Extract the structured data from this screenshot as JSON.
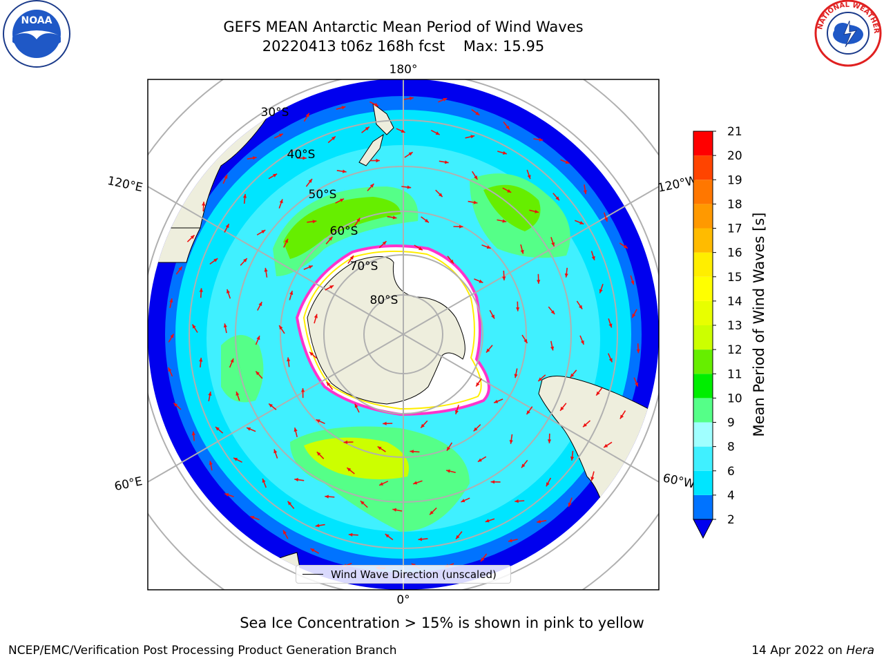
{
  "title": {
    "line1": "GEFS MEAN Antarctic Mean Period of Wind Waves",
    "line2": "20220413 t06z 168h fcst    Max: 15.95"
  },
  "map": {
    "projection": "south-polar-stereographic",
    "longitude_labels": {
      "top": "180°",
      "bottom": "0°",
      "upper_left": "120°E",
      "lower_left": "60°E",
      "upper_right": "120°W",
      "lower_right": "60°W"
    },
    "latitude_labels": [
      "30°S",
      "40°S",
      "50°S",
      "60°S",
      "70°S",
      "80°S"
    ],
    "legend_entry": "Wind Wave Direction (unscaled)",
    "colors": {
      "land": "#eeeedd",
      "ice": "#ffffff",
      "ice_edge": [
        "#ff33cc",
        "#ffee00"
      ],
      "arrow": "#ee1111"
    }
  },
  "colorbar": {
    "label": "Mean Period of Wind Waves [s]",
    "ticks": [
      "2",
      "4",
      "6",
      "8",
      "9",
      "10",
      "11",
      "12",
      "13",
      "14",
      "15",
      "16",
      "17",
      "18",
      "19",
      "20",
      "21"
    ],
    "bins": [
      {
        "range": "2-4",
        "color": "#0073ff"
      },
      {
        "range": "4-6",
        "color": "#00e5ff"
      },
      {
        "range": "6-8",
        "color": "#40f0ff"
      },
      {
        "range": "8-9",
        "color": "#a0ffff"
      },
      {
        "range": "9-10",
        "color": "#55ff88"
      },
      {
        "range": "10-11",
        "color": "#00ee00"
      },
      {
        "range": "11-12",
        "color": "#66ee00"
      },
      {
        "range": "12-13",
        "color": "#ccff00"
      },
      {
        "range": "13-14",
        "color": "#e8ff00"
      },
      {
        "range": "14-15",
        "color": "#ffff00"
      },
      {
        "range": "15-16",
        "color": "#ffee00"
      },
      {
        "range": "16-17",
        "color": "#ffbb00"
      },
      {
        "range": "17-18",
        "color": "#ff9900"
      },
      {
        "range": "18-19",
        "color": "#ff7700"
      },
      {
        "range": "19-20",
        "color": "#ff4400"
      },
      {
        "range": "20-21",
        "color": "#ff0000"
      }
    ],
    "under_color": "#0000ee"
  },
  "caption": "Sea Ice Concentration > 15% is shown in pink to yellow",
  "footer": {
    "left": "NCEP/EMC/Verification Post Processing Product Generation Branch",
    "right_prefix": "14 Apr 2022 on ",
    "right_machine": "Hera"
  },
  "logos": {
    "left": "noaa-logo",
    "left_text": "NOAA",
    "right": "national-weather-service-logo",
    "right_text": "NATIONAL WEATHER SERVICE"
  }
}
